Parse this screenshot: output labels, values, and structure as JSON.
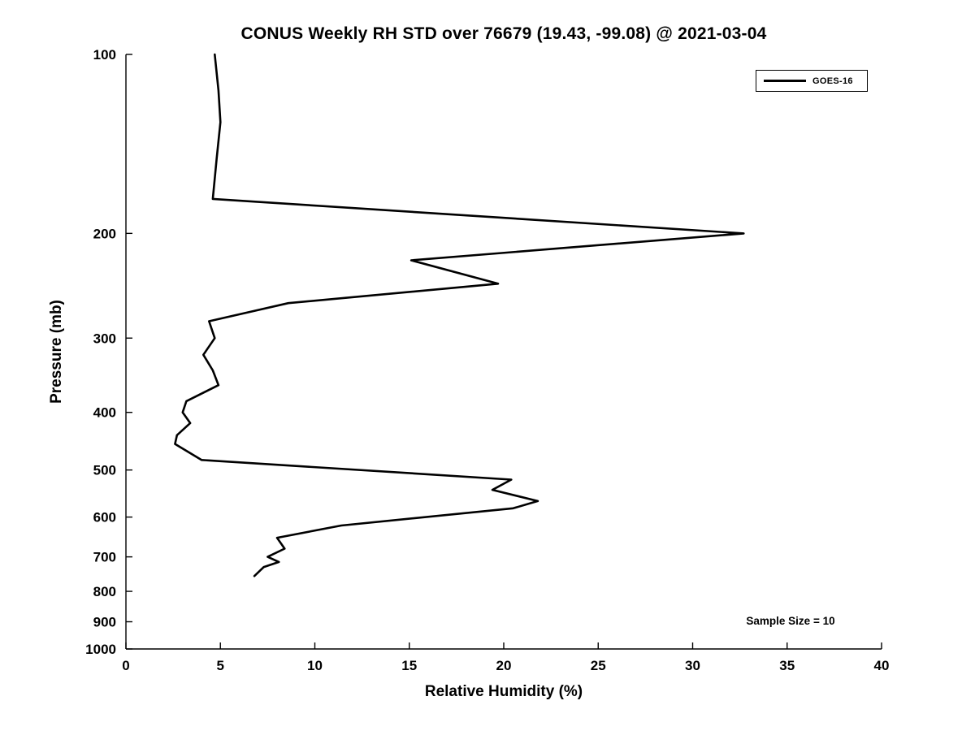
{
  "chart_data": {
    "type": "line",
    "title": "CONUS Weekly RH STD over 76679 (19.43, -99.08) @ 2021-03-04",
    "xlabel": "Relative Humidity (%)",
    "ylabel": "Pressure (mb)",
    "x_axis": {
      "min": 0,
      "max": 40,
      "ticks": [
        0,
        5,
        10,
        15,
        20,
        25,
        30,
        35,
        40
      ]
    },
    "y_axis": {
      "min": 100,
      "max": 1000,
      "scale": "log",
      "inverted": true,
      "ticks": [
        100,
        200,
        300,
        400,
        500,
        600,
        700,
        800,
        900,
        1000
      ]
    },
    "grid": false,
    "legend_position": "top-right",
    "annotations": [
      "Sample Size = 10"
    ],
    "series": [
      {
        "name": "GOES-16",
        "color": "#000000",
        "points": [
          {
            "pressure": 100,
            "rh": 4.7
          },
          {
            "pressure": 115,
            "rh": 4.9
          },
          {
            "pressure": 130,
            "rh": 5.0
          },
          {
            "pressure": 150,
            "rh": 4.8
          },
          {
            "pressure": 175,
            "rh": 4.6
          },
          {
            "pressure": 200,
            "rh": 32.7
          },
          {
            "pressure": 222,
            "rh": 15.1
          },
          {
            "pressure": 243,
            "rh": 19.7
          },
          {
            "pressure": 262,
            "rh": 8.6
          },
          {
            "pressure": 281,
            "rh": 4.4
          },
          {
            "pressure": 300,
            "rh": 4.7
          },
          {
            "pressure": 320,
            "rh": 4.1
          },
          {
            "pressure": 340,
            "rh": 4.6
          },
          {
            "pressure": 360,
            "rh": 4.9
          },
          {
            "pressure": 383,
            "rh": 3.2
          },
          {
            "pressure": 400,
            "rh": 3.0
          },
          {
            "pressure": 417,
            "rh": 3.4
          },
          {
            "pressure": 437,
            "rh": 2.7
          },
          {
            "pressure": 452,
            "rh": 2.6
          },
          {
            "pressure": 481,
            "rh": 4.0
          },
          {
            "pressure": 519,
            "rh": 20.4
          },
          {
            "pressure": 540,
            "rh": 19.4
          },
          {
            "pressure": 564,
            "rh": 21.8
          },
          {
            "pressure": 580,
            "rh": 20.5
          },
          {
            "pressure": 620,
            "rh": 11.4
          },
          {
            "pressure": 650,
            "rh": 8.0
          },
          {
            "pressure": 678,
            "rh": 8.4
          },
          {
            "pressure": 700,
            "rh": 7.5
          },
          {
            "pressure": 714,
            "rh": 8.1
          },
          {
            "pressure": 728,
            "rh": 7.3
          },
          {
            "pressure": 754,
            "rh": 6.8
          }
        ]
      }
    ],
    "colors": {
      "line": "#000000",
      "axis": "#000000",
      "background": "#ffffff",
      "text": "#000000"
    }
  }
}
